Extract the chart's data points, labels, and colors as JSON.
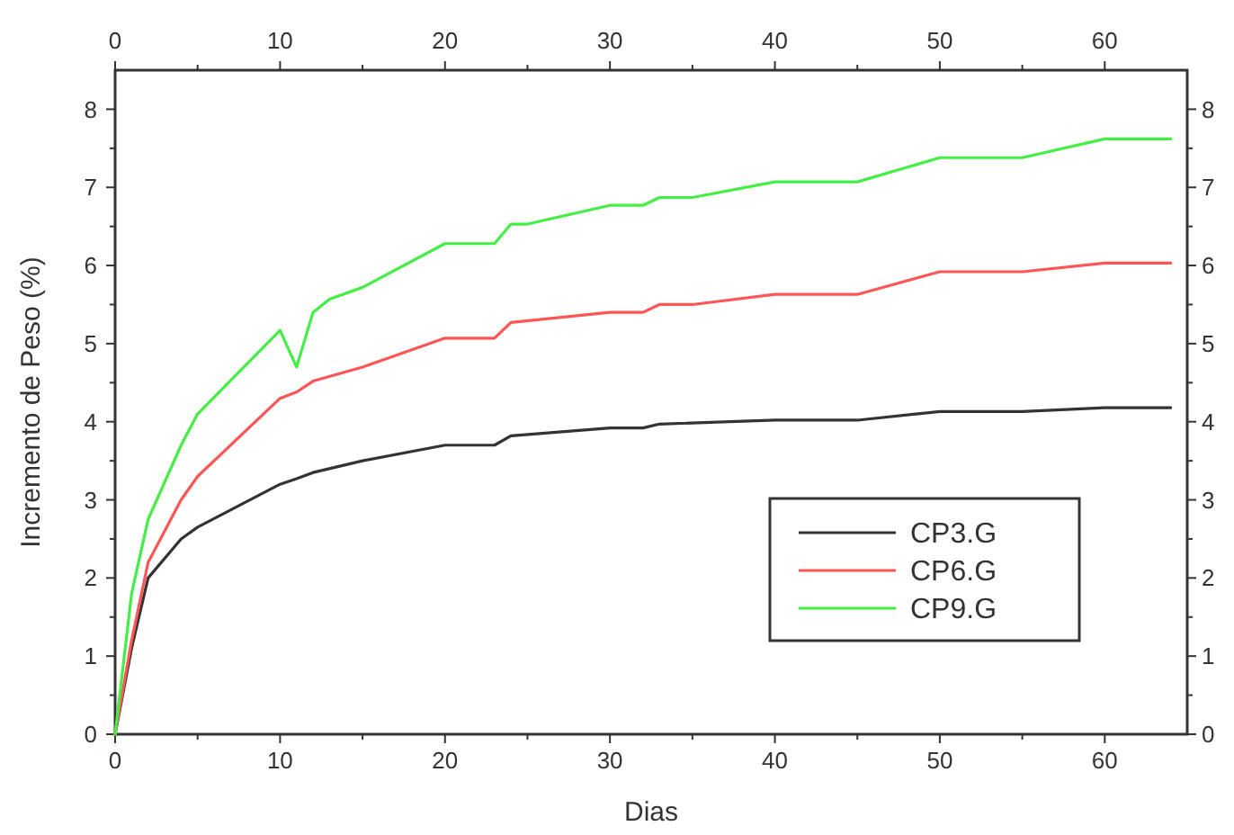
{
  "chart_data": {
    "type": "line",
    "xlabel": "Dias",
    "ylabel": "Incremento de Peso (%)",
    "xlim": [
      0,
      65
    ],
    "ylim": [
      0,
      8.5
    ],
    "xticks": [
      0,
      {
        "value": 5,
        "label": null
      },
      10,
      {
        "value": 15,
        "label": null
      },
      20,
      {
        "value": 25,
        "label": null
      },
      30,
      {
        "value": 35,
        "label": null
      },
      40,
      {
        "value": 45,
        "label": null
      },
      50,
      {
        "value": 55,
        "label": null
      },
      60
    ],
    "yticks": [
      0,
      {
        "value": 0.5,
        "label": null
      },
      1,
      {
        "value": 1.5,
        "label": null
      },
      2,
      {
        "value": 2.5,
        "label": null
      },
      3,
      {
        "value": 3.5,
        "label": null
      },
      4,
      {
        "value": 4.5,
        "label": null
      },
      5,
      {
        "value": 5.5,
        "label": null
      },
      6,
      {
        "value": 6.5,
        "label": null
      },
      7,
      {
        "value": 7.5,
        "label": null
      },
      8
    ],
    "x2lim": [
      0,
      65
    ],
    "x2ticks": [
      0,
      {
        "value": 5,
        "label": null
      },
      10,
      {
        "value": 15,
        "label": null
      },
      20,
      {
        "value": 25,
        "label": null
      },
      30,
      {
        "value": 35,
        "label": null
      },
      40,
      {
        "value": 45,
        "label": null
      },
      50,
      {
        "value": 55,
        "label": null
      },
      60
    ],
    "y2lim": [
      0,
      8.5
    ],
    "y2ticks": [
      0,
      {
        "value": 0.5,
        "label": null
      },
      1,
      {
        "value": 1.5,
        "label": null
      },
      2,
      {
        "value": 2.5,
        "label": null
      },
      3,
      {
        "value": 3.5,
        "label": null
      },
      4,
      {
        "value": 4.5,
        "label": null
      },
      5,
      {
        "value": 5.5,
        "label": null
      },
      6,
      {
        "value": 6.5,
        "label": null
      },
      7,
      {
        "value": 7.5,
        "label": null
      },
      8
    ],
    "grid": false,
    "legend": "bottom right",
    "marker": "none",
    "line_style": "solid",
    "series": [
      {
        "name": "CP3.G",
        "color": "#333333",
        "x": [
          0,
          1,
          2,
          4,
          5,
          10,
          11,
          12,
          15,
          20,
          23,
          24,
          30,
          32,
          33,
          40,
          45,
          50,
          55,
          60,
          64
        ],
        "values": [
          0,
          1.1,
          2.0,
          2.5,
          2.65,
          3.2,
          3.27,
          3.35,
          3.5,
          3.7,
          3.7,
          3.82,
          3.92,
          3.92,
          3.97,
          4.02,
          4.02,
          4.13,
          4.13,
          4.18,
          4.18
        ]
      },
      {
        "name": "CP6.G",
        "color": "#ff5555",
        "x": [
          0,
          1,
          2,
          4,
          5,
          10,
          11,
          12,
          15,
          20,
          23,
          24,
          30,
          32,
          33,
          35,
          40,
          45,
          50,
          55,
          60,
          64
        ],
        "values": [
          0,
          1.2,
          2.2,
          3.0,
          3.3,
          4.3,
          4.38,
          4.52,
          4.7,
          5.07,
          5.07,
          5.27,
          5.4,
          5.4,
          5.5,
          5.5,
          5.63,
          5.63,
          5.92,
          5.92,
          6.03,
          6.03
        ]
      },
      {
        "name": "CP9.G",
        "color": "#44ee44",
        "x": [
          0,
          1,
          2,
          4,
          5,
          10,
          11,
          12,
          13,
          15,
          20,
          23,
          24,
          25,
          30,
          32,
          33,
          35,
          40,
          45,
          50,
          55,
          60,
          64
        ],
        "values": [
          0,
          1.8,
          2.75,
          3.7,
          4.1,
          5.17,
          4.7,
          5.4,
          5.57,
          5.72,
          6.28,
          6.28,
          6.53,
          6.53,
          6.77,
          6.77,
          6.87,
          6.87,
          7.07,
          7.07,
          7.38,
          7.38,
          7.62,
          7.62
        ]
      }
    ]
  }
}
